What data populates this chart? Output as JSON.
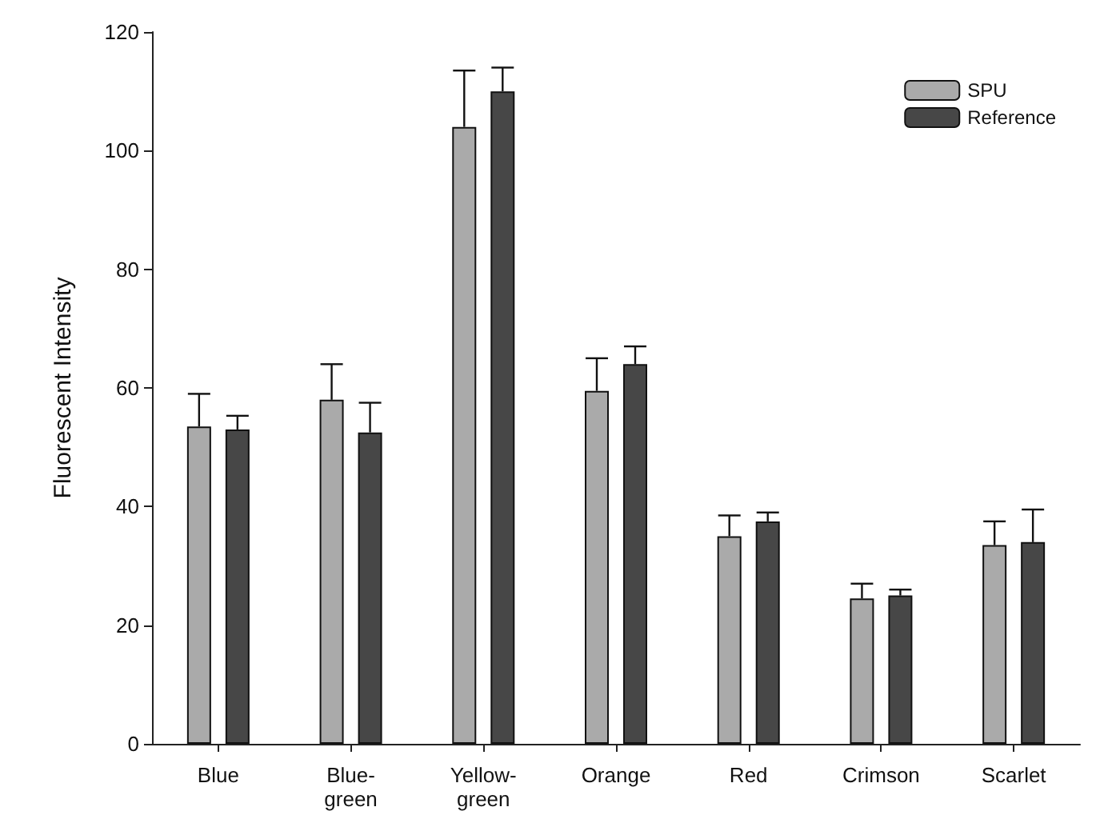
{
  "chart_data": {
    "type": "bar",
    "ylabel": "Fluorescent Intensity",
    "categories": [
      "Blue",
      "Blue-green",
      "Yellow-green",
      "Orange",
      "Red",
      "Crimson",
      "Scarlet"
    ],
    "series": [
      {
        "name": "SPU",
        "color": "#aaaaaa",
        "values": [
          53.5,
          58,
          104,
          59.5,
          35,
          24.5,
          33.5
        ],
        "errors": [
          [
            53.5,
            59
          ],
          [
            58,
            64
          ],
          [
            104,
            113.5
          ],
          [
            59.5,
            65
          ],
          [
            35,
            38.5
          ],
          [
            24.5,
            27
          ],
          [
            33.5,
            37.5
          ]
        ]
      },
      {
        "name": "Reference",
        "color": "#474747",
        "values": [
          53,
          52.5,
          110,
          64,
          37.5,
          25,
          34
        ],
        "errors": [
          [
            53,
            55.3
          ],
          [
            52.5,
            57.5
          ],
          [
            110,
            114
          ],
          [
            64,
            67
          ],
          [
            37.5,
            39
          ],
          [
            25,
            26
          ],
          [
            34,
            39.5
          ]
        ]
      }
    ],
    "ylim": [
      0,
      120
    ],
    "yticks": [
      0,
      20,
      40,
      60,
      80,
      100,
      120
    ],
    "grid": false,
    "legend": "top right"
  }
}
